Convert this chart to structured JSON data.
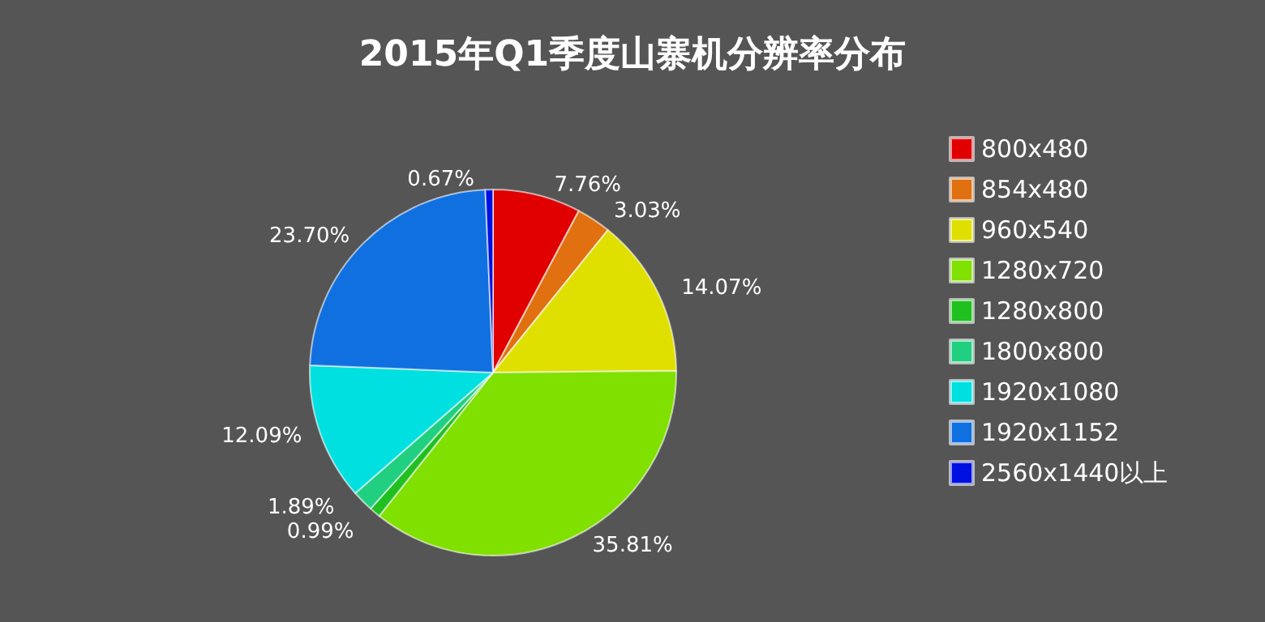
{
  "chart_data": {
    "type": "pie",
    "title": "2015年Q1季度山寨机分辨率分布",
    "categories": [
      "800x480",
      "854x480",
      "960x540",
      "1280x720",
      "1280x800",
      "1800x800",
      "1920x1080",
      "1920x1152",
      "2560x1440以上"
    ],
    "values": [
      7.76,
      3.03,
      14.07,
      35.81,
      0.99,
      1.89,
      12.09,
      23.7,
      0.67
    ],
    "value_labels": [
      "7.76%",
      "3.03%",
      "14.07%",
      "35.81%",
      "0.99%",
      "1.89%",
      "12.09%",
      "23.70%",
      "0.67%"
    ],
    "colors": [
      "#e00000",
      "#e07010",
      "#e0e000",
      "#80e000",
      "#20c020",
      "#20d080",
      "#00e0e0",
      "#1070e0",
      "#0010e0"
    ],
    "legend": "right"
  }
}
